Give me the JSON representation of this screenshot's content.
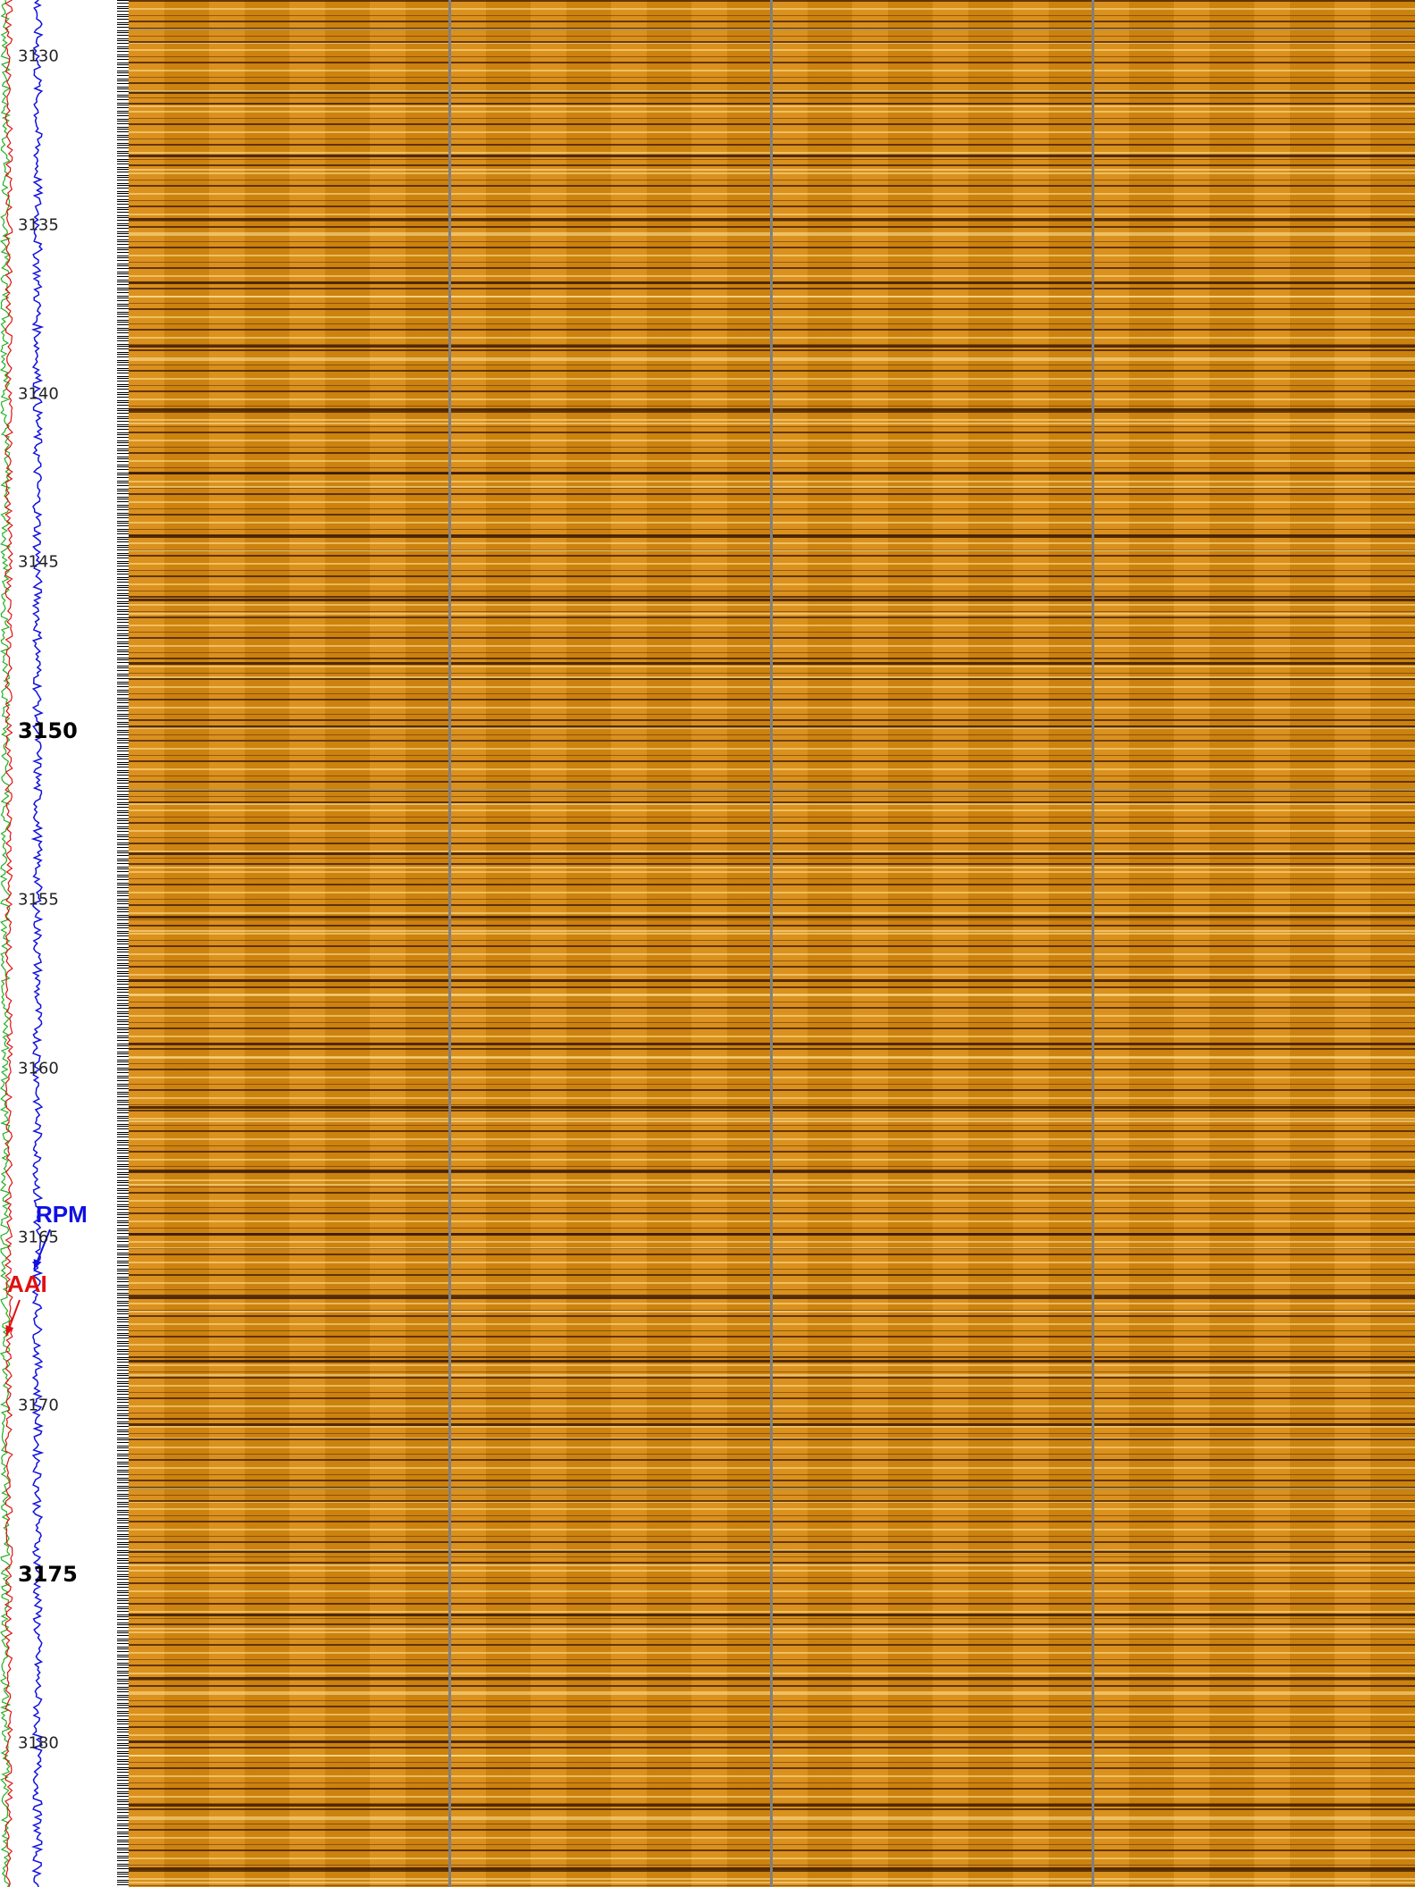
{
  "depth_track": {
    "labels": [
      3130,
      3135,
      3140,
      3145,
      3150,
      3155,
      3160,
      3165,
      3170,
      3175,
      3180
    ]
  },
  "curves": [
    {
      "label": "RPM",
      "color": "#1010e0"
    },
    {
      "label": "AAI",
      "color": "#e01010"
    }
  ]
}
